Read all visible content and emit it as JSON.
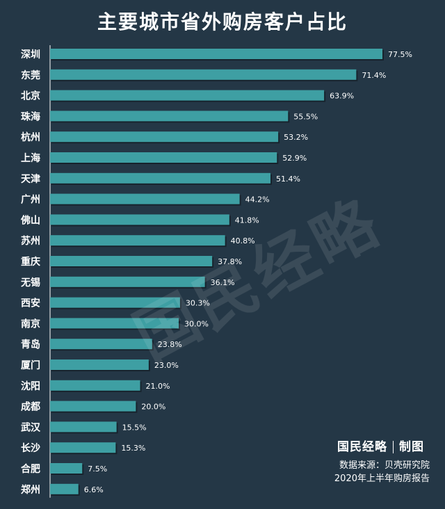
{
  "title": "主要城市省外购房客户占比",
  "watermark": "国民经略",
  "brand": {
    "name": "国民经略",
    "suffix": "制图"
  },
  "source": {
    "line1": "数据来源：贝壳研究院",
    "line2": "2020年上半年购房报告"
  },
  "colors": {
    "background": "#243746",
    "bar": "#3E9FA3"
  },
  "chart_data": {
    "type": "bar",
    "orientation": "horizontal",
    "title": "主要城市省外购房客户占比",
    "unit": "%",
    "categories": [
      "深圳",
      "东莞",
      "北京",
      "珠海",
      "杭州",
      "上海",
      "天津",
      "广州",
      "佛山",
      "苏州",
      "重庆",
      "无锡",
      "西安",
      "南京",
      "青岛",
      "厦门",
      "沈阳",
      "成都",
      "武汉",
      "长沙",
      "合肥",
      "郑州"
    ],
    "values": [
      77.5,
      71.4,
      63.9,
      55.5,
      53.2,
      52.9,
      51.4,
      44.2,
      41.8,
      40.8,
      37.8,
      36.1,
      30.3,
      30.0,
      23.8,
      23.0,
      21.0,
      20.0,
      15.5,
      15.3,
      7.5,
      6.6
    ],
    "value_labels": [
      "77.5%",
      "71.4%",
      "63.9%",
      "55.5%",
      "53.2%",
      "52.9%",
      "51.4%",
      "44.2%",
      "41.8%",
      "40.8%",
      "37.8%",
      "36.1%",
      "30.3%",
      "30.0%",
      "23.8%",
      "23.0%",
      "21.0%",
      "20.0%",
      "15.5%",
      "15.3%",
      "7.5%",
      "6.6%"
    ],
    "xlim": [
      0,
      77.5
    ],
    "grid": false,
    "legend": "none"
  }
}
